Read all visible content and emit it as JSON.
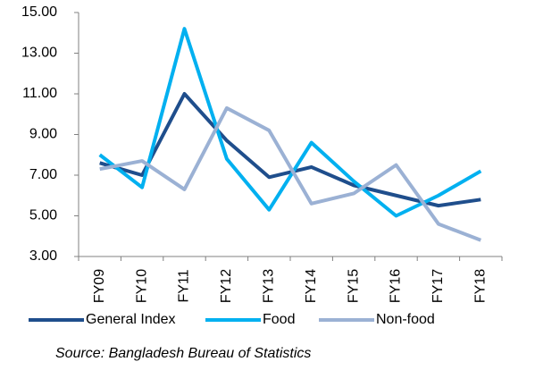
{
  "chart_data": {
    "type": "line",
    "categories": [
      "FY09",
      "FY10",
      "FY11",
      "FY12",
      "FY13",
      "FY14",
      "FY15",
      "FY16",
      "FY17",
      "FY18"
    ],
    "series": [
      {
        "name": "General Index",
        "color": "#1f4e8c",
        "values": [
          7.6,
          7.0,
          11.0,
          8.7,
          6.9,
          7.4,
          6.5,
          6.0,
          5.5,
          5.8
        ]
      },
      {
        "name": "Food",
        "color": "#00b0f0",
        "values": [
          8.0,
          6.4,
          14.2,
          7.8,
          5.3,
          8.6,
          6.7,
          5.0,
          6.0,
          7.2
        ]
      },
      {
        "name": "Non-food",
        "color": "#9bb1d4",
        "values": [
          7.3,
          7.7,
          6.3,
          10.3,
          9.2,
          5.6,
          6.1,
          7.5,
          4.6,
          3.8
        ]
      }
    ],
    "ylim": [
      3,
      15
    ],
    "yticks": [
      {
        "value": 3,
        "label": "3.00"
      },
      {
        "value": 5,
        "label": "5.00"
      },
      {
        "value": 7,
        "label": "7.00"
      },
      {
        "value": 9,
        "label": "9.00"
      },
      {
        "value": 11,
        "label": "11.00"
      },
      {
        "value": 13,
        "label": "13.00"
      },
      {
        "value": 15,
        "label": "15.00"
      }
    ],
    "grid": false,
    "source": "Source: Bangladesh Bureau of Statistics"
  }
}
